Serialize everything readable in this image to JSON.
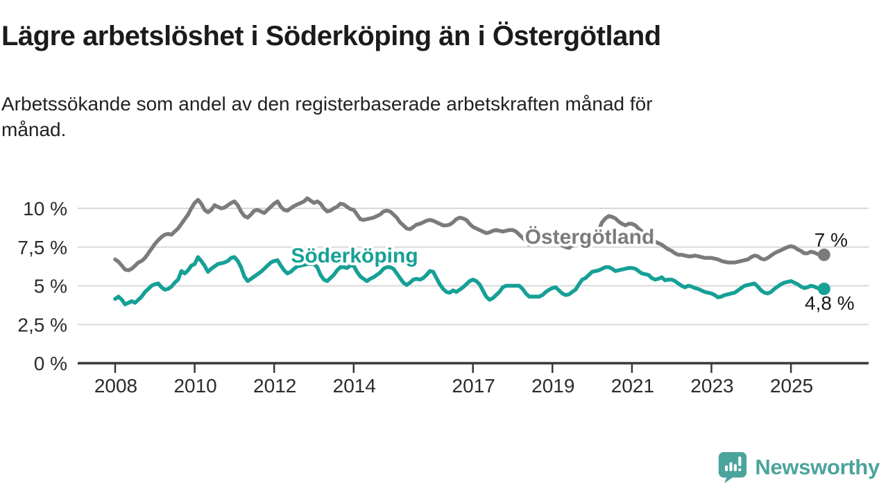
{
  "title": "Lägre arbetslöshet i Söderköping än i Östergötland",
  "subtitle_line1": "Arbetssökande som andel av den registerbaserade arbetskraften månad för",
  "subtitle_line2": "månad.",
  "logo": {
    "text": "Newsworthy",
    "color": "#4BA49C"
  },
  "colors": {
    "ostergotland": "#7b7b7b",
    "soderkoping": "#16a096",
    "axis": "#383838",
    "grid": "#d9d9d9",
    "tick_text": "#2b2b2b",
    "end_label_text": "#1a1a1a"
  },
  "chart_data": {
    "type": "line",
    "unit": "%",
    "frequency": "monthly",
    "start": {
      "year": 2008,
      "month": 1
    },
    "ylim": [
      0,
      11
    ],
    "grid": "horizontal",
    "legend_position": "inline-labels",
    "y_ticks": [
      {
        "label": "0 %",
        "value": 0
      },
      {
        "label": "2,5 %",
        "value": 2.5
      },
      {
        "label": "5 %",
        "value": 5
      },
      {
        "label": "7,5 %",
        "value": 7.5
      },
      {
        "label": "10 %",
        "value": 10
      }
    ],
    "x_ticks": [
      {
        "label": "2008",
        "year": 2008
      },
      {
        "label": "2010",
        "year": 2010
      },
      {
        "label": "2012",
        "year": 2012
      },
      {
        "label": "2014",
        "year": 2014
      },
      {
        "label": "2017",
        "year": 2017
      },
      {
        "label": "2019",
        "year": 2019
      },
      {
        "label": "2021",
        "year": 2021
      },
      {
        "label": "2023",
        "year": 2023
      },
      {
        "label": "2025",
        "year": 2025
      }
    ],
    "series": [
      {
        "name": "Östergötland",
        "color": "#7b7b7b",
        "name_label": {
          "x": 850,
          "y": 351
        },
        "end_label": {
          "text": "7 %",
          "dx": 10,
          "dy": -12
        },
        "values": [
          6.7,
          6.55,
          6.3,
          6.05,
          6.0,
          6.1,
          6.3,
          6.5,
          6.6,
          6.8,
          7.1,
          7.4,
          7.7,
          7.95,
          8.15,
          8.3,
          8.35,
          8.3,
          8.5,
          8.7,
          9.0,
          9.3,
          9.6,
          10.0,
          10.35,
          10.55,
          10.3,
          9.9,
          9.75,
          9.9,
          10.2,
          10.1,
          10.0,
          10.05,
          10.2,
          10.35,
          10.45,
          10.2,
          9.8,
          9.5,
          9.4,
          9.6,
          9.85,
          9.9,
          9.8,
          9.7,
          9.9,
          10.1,
          10.3,
          10.45,
          10.1,
          9.9,
          9.85,
          10.0,
          10.15,
          10.25,
          10.35,
          10.45,
          10.65,
          10.5,
          10.35,
          10.45,
          10.3,
          10.0,
          9.8,
          9.85,
          10.0,
          10.1,
          10.3,
          10.25,
          10.1,
          9.95,
          9.9,
          9.6,
          9.3,
          9.25,
          9.3,
          9.35,
          9.4,
          9.5,
          9.6,
          9.8,
          9.85,
          9.8,
          9.6,
          9.4,
          9.1,
          8.9,
          8.7,
          8.65,
          8.8,
          8.95,
          9.0,
          9.1,
          9.2,
          9.25,
          9.2,
          9.1,
          9.0,
          8.9,
          8.9,
          8.95,
          9.1,
          9.3,
          9.4,
          9.35,
          9.25,
          9.0,
          8.8,
          8.7,
          8.6,
          8.5,
          8.4,
          8.45,
          8.55,
          8.6,
          8.55,
          8.5,
          8.55,
          8.6,
          8.6,
          8.5,
          8.3,
          8.1,
          7.9,
          7.65,
          7.8,
          7.9,
          7.85,
          7.8,
          7.85,
          7.95,
          8.0,
          7.9,
          7.75,
          7.6,
          7.5,
          7.45,
          7.6,
          7.75,
          7.7,
          7.7,
          7.8,
          8.0,
          8.2,
          8.3,
          8.6,
          9.1,
          9.35,
          9.5,
          9.45,
          9.35,
          9.15,
          9.0,
          8.9,
          9.0,
          9.0,
          8.9,
          8.7,
          8.5,
          8.3,
          8.1,
          7.95,
          7.85,
          7.75,
          7.65,
          7.5,
          7.35,
          7.25,
          7.1,
          7.0,
          7.0,
          6.95,
          6.9,
          6.9,
          6.95,
          6.9,
          6.85,
          6.8,
          6.8,
          6.8,
          6.75,
          6.7,
          6.6,
          6.55,
          6.5,
          6.5,
          6.5,
          6.55,
          6.6,
          6.65,
          6.7,
          6.85,
          6.95,
          6.9,
          6.75,
          6.7,
          6.8,
          6.95,
          7.1,
          7.2,
          7.3,
          7.4,
          7.5,
          7.55,
          7.5,
          7.35,
          7.25,
          7.1,
          7.1,
          7.2,
          7.15,
          7.05,
          7.0,
          7.0
        ]
      },
      {
        "name": "Söderköping",
        "color": "#16a096",
        "name_label": {
          "x": 511,
          "y": 378
        },
        "end_label": {
          "text": "4,8 %",
          "dx": 8,
          "dy": 30
        },
        "values": [
          4.15,
          4.3,
          4.1,
          3.8,
          3.9,
          4.0,
          3.9,
          4.1,
          4.3,
          4.6,
          4.8,
          5.0,
          5.1,
          5.15,
          4.9,
          4.75,
          4.8,
          4.95,
          5.2,
          5.4,
          5.95,
          5.8,
          6.0,
          6.3,
          6.4,
          6.85,
          6.6,
          6.3,
          5.9,
          6.1,
          6.25,
          6.4,
          6.45,
          6.5,
          6.6,
          6.8,
          6.85,
          6.6,
          6.2,
          5.6,
          5.3,
          5.45,
          5.6,
          5.75,
          5.9,
          6.1,
          6.3,
          6.5,
          6.6,
          6.65,
          6.3,
          6.0,
          5.8,
          5.9,
          6.1,
          6.25,
          6.3,
          6.35,
          6.4,
          6.4,
          6.4,
          6.2,
          5.7,
          5.4,
          5.3,
          5.5,
          5.7,
          6.0,
          6.2,
          6.2,
          6.15,
          6.3,
          6.3,
          5.9,
          5.6,
          5.45,
          5.3,
          5.45,
          5.55,
          5.7,
          5.85,
          6.1,
          6.2,
          6.2,
          6.1,
          5.8,
          5.5,
          5.2,
          5.05,
          5.2,
          5.4,
          5.45,
          5.4,
          5.5,
          5.7,
          5.95,
          5.9,
          5.5,
          5.1,
          4.8,
          4.6,
          4.55,
          4.7,
          4.6,
          4.75,
          4.9,
          5.1,
          5.3,
          5.4,
          5.3,
          5.1,
          4.7,
          4.3,
          4.1,
          4.2,
          4.4,
          4.6,
          4.9,
          5.0,
          5.0,
          5.0,
          5.0,
          5.0,
          4.8,
          4.5,
          4.3,
          4.3,
          4.3,
          4.3,
          4.4,
          4.6,
          4.75,
          4.85,
          4.9,
          4.7,
          4.5,
          4.4,
          4.45,
          4.6,
          4.75,
          5.1,
          5.4,
          5.5,
          5.7,
          5.9,
          5.95,
          6.0,
          6.1,
          6.2,
          6.2,
          6.1,
          5.95,
          6.0,
          6.05,
          6.1,
          6.15,
          6.15,
          6.1,
          5.95,
          5.8,
          5.75,
          5.7,
          5.5,
          5.4,
          5.45,
          5.55,
          5.35,
          5.4,
          5.4,
          5.3,
          5.15,
          5.0,
          4.9,
          5.0,
          4.95,
          4.85,
          4.8,
          4.7,
          4.6,
          4.55,
          4.5,
          4.4,
          4.25,
          4.3,
          4.4,
          4.45,
          4.5,
          4.55,
          4.7,
          4.85,
          5.0,
          5.05,
          5.1,
          5.15,
          4.95,
          4.7,
          4.55,
          4.5,
          4.6,
          4.8,
          4.95,
          5.1,
          5.2,
          5.25,
          5.3,
          5.2,
          5.1,
          4.95,
          4.85,
          4.9,
          5.0,
          4.95,
          4.85,
          4.8,
          4.8
        ]
      }
    ]
  }
}
